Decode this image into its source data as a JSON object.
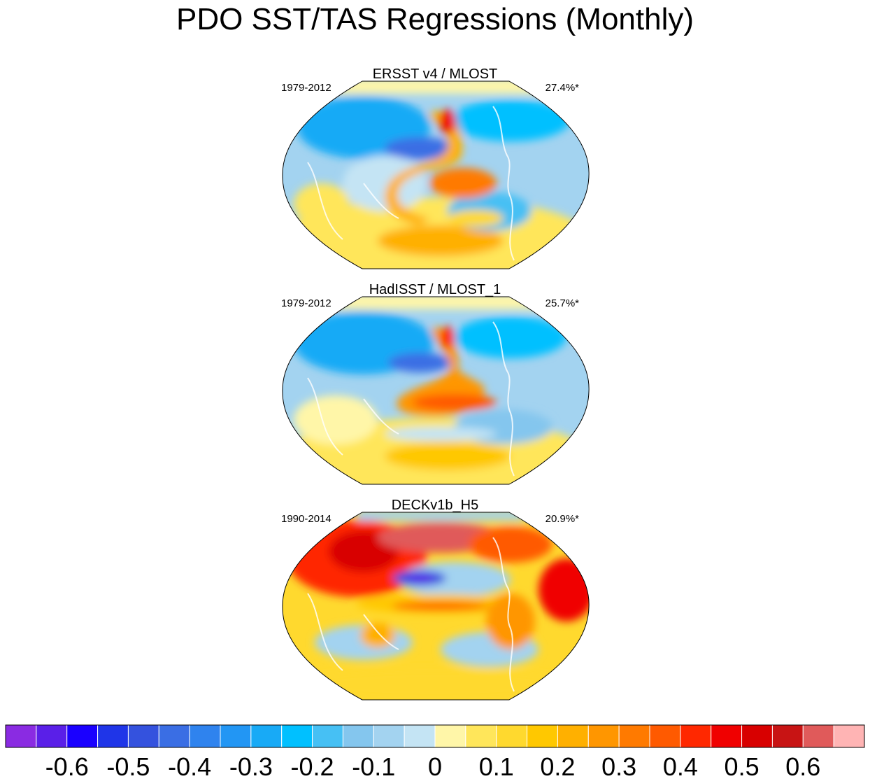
{
  "title": "PDO SST/TAS Regressions (Monthly)",
  "panels": [
    {
      "title": "ERSST v4 / MLOST",
      "period": "1979-2012",
      "variance": "27.4%*"
    },
    {
      "title": "HadISST / MLOST_1",
      "period": "1979-2012",
      "variance": "25.7%*"
    },
    {
      "title": "DECKv1b_H5",
      "period": "1990-2014",
      "variance": "20.9%*"
    }
  ],
  "colorbar": {
    "colors": [
      "#8a2be2",
      "#5a1fe8",
      "#1a00ff",
      "#1f35e8",
      "#3452de",
      "#3a6ee4",
      "#2f83ee",
      "#2296f4",
      "#18aaf6",
      "#00c0ff",
      "#46c0f4",
      "#84c6ee",
      "#a3d3f0",
      "#c4e4f4",
      "#fff6a8",
      "#ffe65a",
      "#ffd92e",
      "#ffc800",
      "#ffb000",
      "#ff9600",
      "#ff7a00",
      "#ff5a00",
      "#ff2800",
      "#f00000",
      "#d80000",
      "#c81414",
      "#e05a5a",
      "#ffb4b4"
    ],
    "tick_labels": [
      "-0.6",
      "-0.5",
      "-0.4",
      "-0.3",
      "-0.2",
      "-0.1",
      "0",
      "0.1",
      "0.2",
      "0.3",
      "0.4",
      "0.5",
      "0.6"
    ]
  }
}
